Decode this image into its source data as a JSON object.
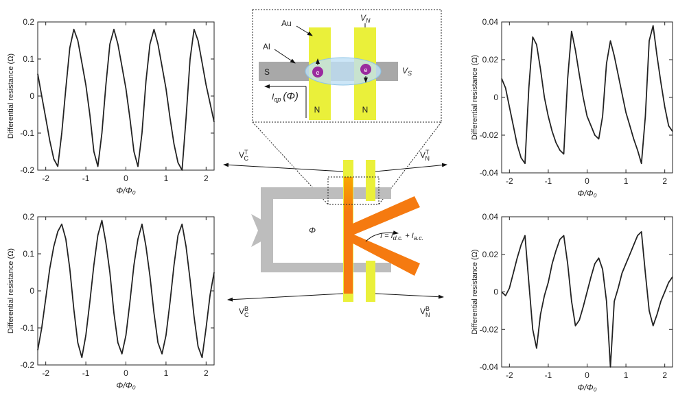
{
  "chart_data": [
    {
      "type": "line",
      "xlabel": "Φ/Φ₀",
      "ylabel": "Differential resistance (Ω)",
      "color": "#222222",
      "xlim": [
        -2.2,
        2.2
      ],
      "ylim": [
        -0.2,
        0.2
      ],
      "xticks": [
        -2,
        -1,
        0,
        1,
        2
      ],
      "yticks": [
        -0.2,
        -0.1,
        0,
        0.1,
        0.2
      ],
      "x": [
        -2.2,
        -2.1,
        -2.0,
        -1.9,
        -1.8,
        -1.7,
        -1.6,
        -1.5,
        -1.4,
        -1.3,
        -1.2,
        -1.1,
        -1.0,
        -0.9,
        -0.8,
        -0.7,
        -0.6,
        -0.5,
        -0.4,
        -0.3,
        -0.2,
        -0.1,
        0,
        0.1,
        0.2,
        0.3,
        0.4,
        0.5,
        0.6,
        0.7,
        0.8,
        0.9,
        1.0,
        1.1,
        1.2,
        1.3,
        1.4,
        1.5,
        1.6,
        1.7,
        1.8,
        1.9,
        2.0,
        2.1,
        2.2
      ],
      "values": [
        0.06,
        0.0,
        -0.06,
        -0.12,
        -0.17,
        -0.19,
        -0.1,
        0.02,
        0.13,
        0.18,
        0.15,
        0.09,
        0.03,
        -0.05,
        -0.15,
        -0.19,
        -0.1,
        0.03,
        0.14,
        0.18,
        0.14,
        0.08,
        0.02,
        -0.06,
        -0.15,
        -0.19,
        -0.1,
        0.04,
        0.14,
        0.18,
        0.14,
        0.08,
        0.02,
        -0.06,
        -0.13,
        -0.18,
        -0.2,
        -0.06,
        0.1,
        0.18,
        0.15,
        0.09,
        0.03,
        -0.02,
        -0.07
      ]
    },
    {
      "type": "line",
      "xlabel": "Φ/Φ₀",
      "ylabel": "Differential resistance (Ω)",
      "color": "#222222",
      "xlim": [
        -2.2,
        2.2
      ],
      "ylim": [
        -0.2,
        0.2
      ],
      "xticks": [
        -2,
        -1,
        0,
        1,
        2
      ],
      "yticks": [
        -0.2,
        -0.1,
        0,
        0.1,
        0.2
      ],
      "x": [
        -2.2,
        -2.1,
        -2.0,
        -1.9,
        -1.8,
        -1.7,
        -1.6,
        -1.5,
        -1.4,
        -1.3,
        -1.2,
        -1.1,
        -1.0,
        -0.9,
        -0.8,
        -0.7,
        -0.6,
        -0.5,
        -0.4,
        -0.3,
        -0.2,
        -0.1,
        0,
        0.1,
        0.2,
        0.3,
        0.4,
        0.5,
        0.6,
        0.7,
        0.8,
        0.9,
        1.0,
        1.1,
        1.2,
        1.3,
        1.4,
        1.5,
        1.6,
        1.7,
        1.8,
        1.9,
        2.0,
        2.1,
        2.2
      ],
      "values": [
        -0.16,
        -0.1,
        -0.02,
        0.06,
        0.12,
        0.16,
        0.18,
        0.14,
        0.06,
        -0.05,
        -0.14,
        -0.18,
        -0.12,
        -0.03,
        0.07,
        0.15,
        0.19,
        0.13,
        0.05,
        -0.06,
        -0.14,
        -0.17,
        -0.12,
        -0.03,
        0.07,
        0.14,
        0.18,
        0.12,
        0.04,
        -0.06,
        -0.14,
        -0.17,
        -0.12,
        -0.03,
        0.07,
        0.15,
        0.18,
        0.12,
        0.03,
        -0.07,
        -0.15,
        -0.18,
        -0.1,
        -0.01,
        0.05
      ]
    },
    {
      "type": "line",
      "xlabel": "Φ/Φ₀",
      "ylabel": "Differential resistance (Ω)",
      "color": "#222222",
      "xlim": [
        -2.2,
        2.2
      ],
      "ylim": [
        -0.04,
        0.04
      ],
      "xticks": [
        -2,
        -1,
        0,
        1,
        2
      ],
      "yticks": [
        -0.04,
        -0.02,
        0,
        0.02,
        0.04
      ],
      "x": [
        -2.2,
        -2.1,
        -2.0,
        -1.9,
        -1.8,
        -1.7,
        -1.6,
        -1.5,
        -1.4,
        -1.3,
        -1.2,
        -1.1,
        -1.0,
        -0.9,
        -0.8,
        -0.7,
        -0.6,
        -0.5,
        -0.4,
        -0.3,
        -0.2,
        -0.1,
        0,
        0.1,
        0.2,
        0.3,
        0.4,
        0.5,
        0.6,
        0.7,
        0.8,
        0.9,
        1.0,
        1.1,
        1.2,
        1.3,
        1.4,
        1.5,
        1.6,
        1.7,
        1.8,
        1.9,
        2.0,
        2.1,
        2.2
      ],
      "values": [
        0.01,
        0.005,
        -0.005,
        -0.015,
        -0.025,
        -0.032,
        -0.035,
        0.005,
        0.032,
        0.028,
        0.015,
        0.0,
        -0.01,
        -0.018,
        -0.024,
        -0.028,
        -0.03,
        0.01,
        0.035,
        0.025,
        0.012,
        0.0,
        -0.01,
        -0.015,
        -0.02,
        -0.022,
        -0.01,
        0.018,
        0.03,
        0.022,
        0.012,
        0.002,
        -0.008,
        -0.015,
        -0.022,
        -0.028,
        -0.035,
        -0.01,
        0.03,
        0.038,
        0.022,
        0.008,
        -0.005,
        -0.015,
        -0.018
      ]
    },
    {
      "type": "line",
      "xlabel": "Φ/Φ₀",
      "ylabel": "Differential resistance (Ω)",
      "color": "#222222",
      "xlim": [
        -2.2,
        2.2
      ],
      "ylim": [
        -0.04,
        0.04
      ],
      "xticks": [
        -2,
        -1,
        0,
        1,
        2
      ],
      "yticks": [
        -0.04,
        -0.02,
        0,
        0.02,
        0.04
      ],
      "x": [
        -2.2,
        -2.1,
        -2.0,
        -1.9,
        -1.8,
        -1.7,
        -1.6,
        -1.5,
        -1.4,
        -1.3,
        -1.2,
        -1.1,
        -1.0,
        -0.9,
        -0.8,
        -0.7,
        -0.6,
        -0.5,
        -0.4,
        -0.3,
        -0.2,
        -0.1,
        0,
        0.1,
        0.2,
        0.3,
        0.4,
        0.5,
        0.6,
        0.7,
        0.8,
        0.9,
        1.0,
        1.1,
        1.2,
        1.3,
        1.4,
        1.5,
        1.6,
        1.7,
        1.8,
        1.9,
        2.0,
        2.1,
        2.2
      ],
      "values": [
        0.0,
        -0.002,
        0.002,
        0.01,
        0.018,
        0.025,
        0.03,
        0.005,
        -0.02,
        -0.03,
        -0.012,
        -0.002,
        0.005,
        0.015,
        0.022,
        0.028,
        0.03,
        0.015,
        -0.005,
        -0.018,
        -0.015,
        -0.008,
        0.0,
        0.008,
        0.015,
        0.018,
        0.012,
        -0.005,
        -0.04,
        -0.005,
        0.002,
        0.01,
        0.015,
        0.02,
        0.025,
        0.03,
        0.032,
        0.01,
        -0.01,
        -0.018,
        -0.012,
        -0.005,
        0.0,
        0.005,
        0.008
      ]
    }
  ],
  "diagram": {
    "inset": {
      "au": "Au",
      "al": "Al",
      "vn": {
        "base": "V",
        "sub": "N"
      },
      "s": "S",
      "vs": {
        "base": "V",
        "sub": "S"
      },
      "n_left": "N",
      "n_right": "N",
      "electron_left": "e",
      "electron_right": "e",
      "iqp": {
        "base": "I",
        "sub": "qp",
        "rest": "(Φ)"
      }
    },
    "vct": {
      "base": "V",
      "sub": "C",
      "sup": "T"
    },
    "vnt": {
      "base": "V",
      "sub": "N",
      "sup": "T"
    },
    "vcb": {
      "base": "V",
      "sub": "C",
      "sup": "B"
    },
    "vnb": {
      "base": "V",
      "sub": "N",
      "sup": "B"
    },
    "phi": "Φ",
    "current": {
      "text1": "I = I",
      "sub1": "d.c.",
      "text2": " + I",
      "sub2": "a.c."
    }
  }
}
